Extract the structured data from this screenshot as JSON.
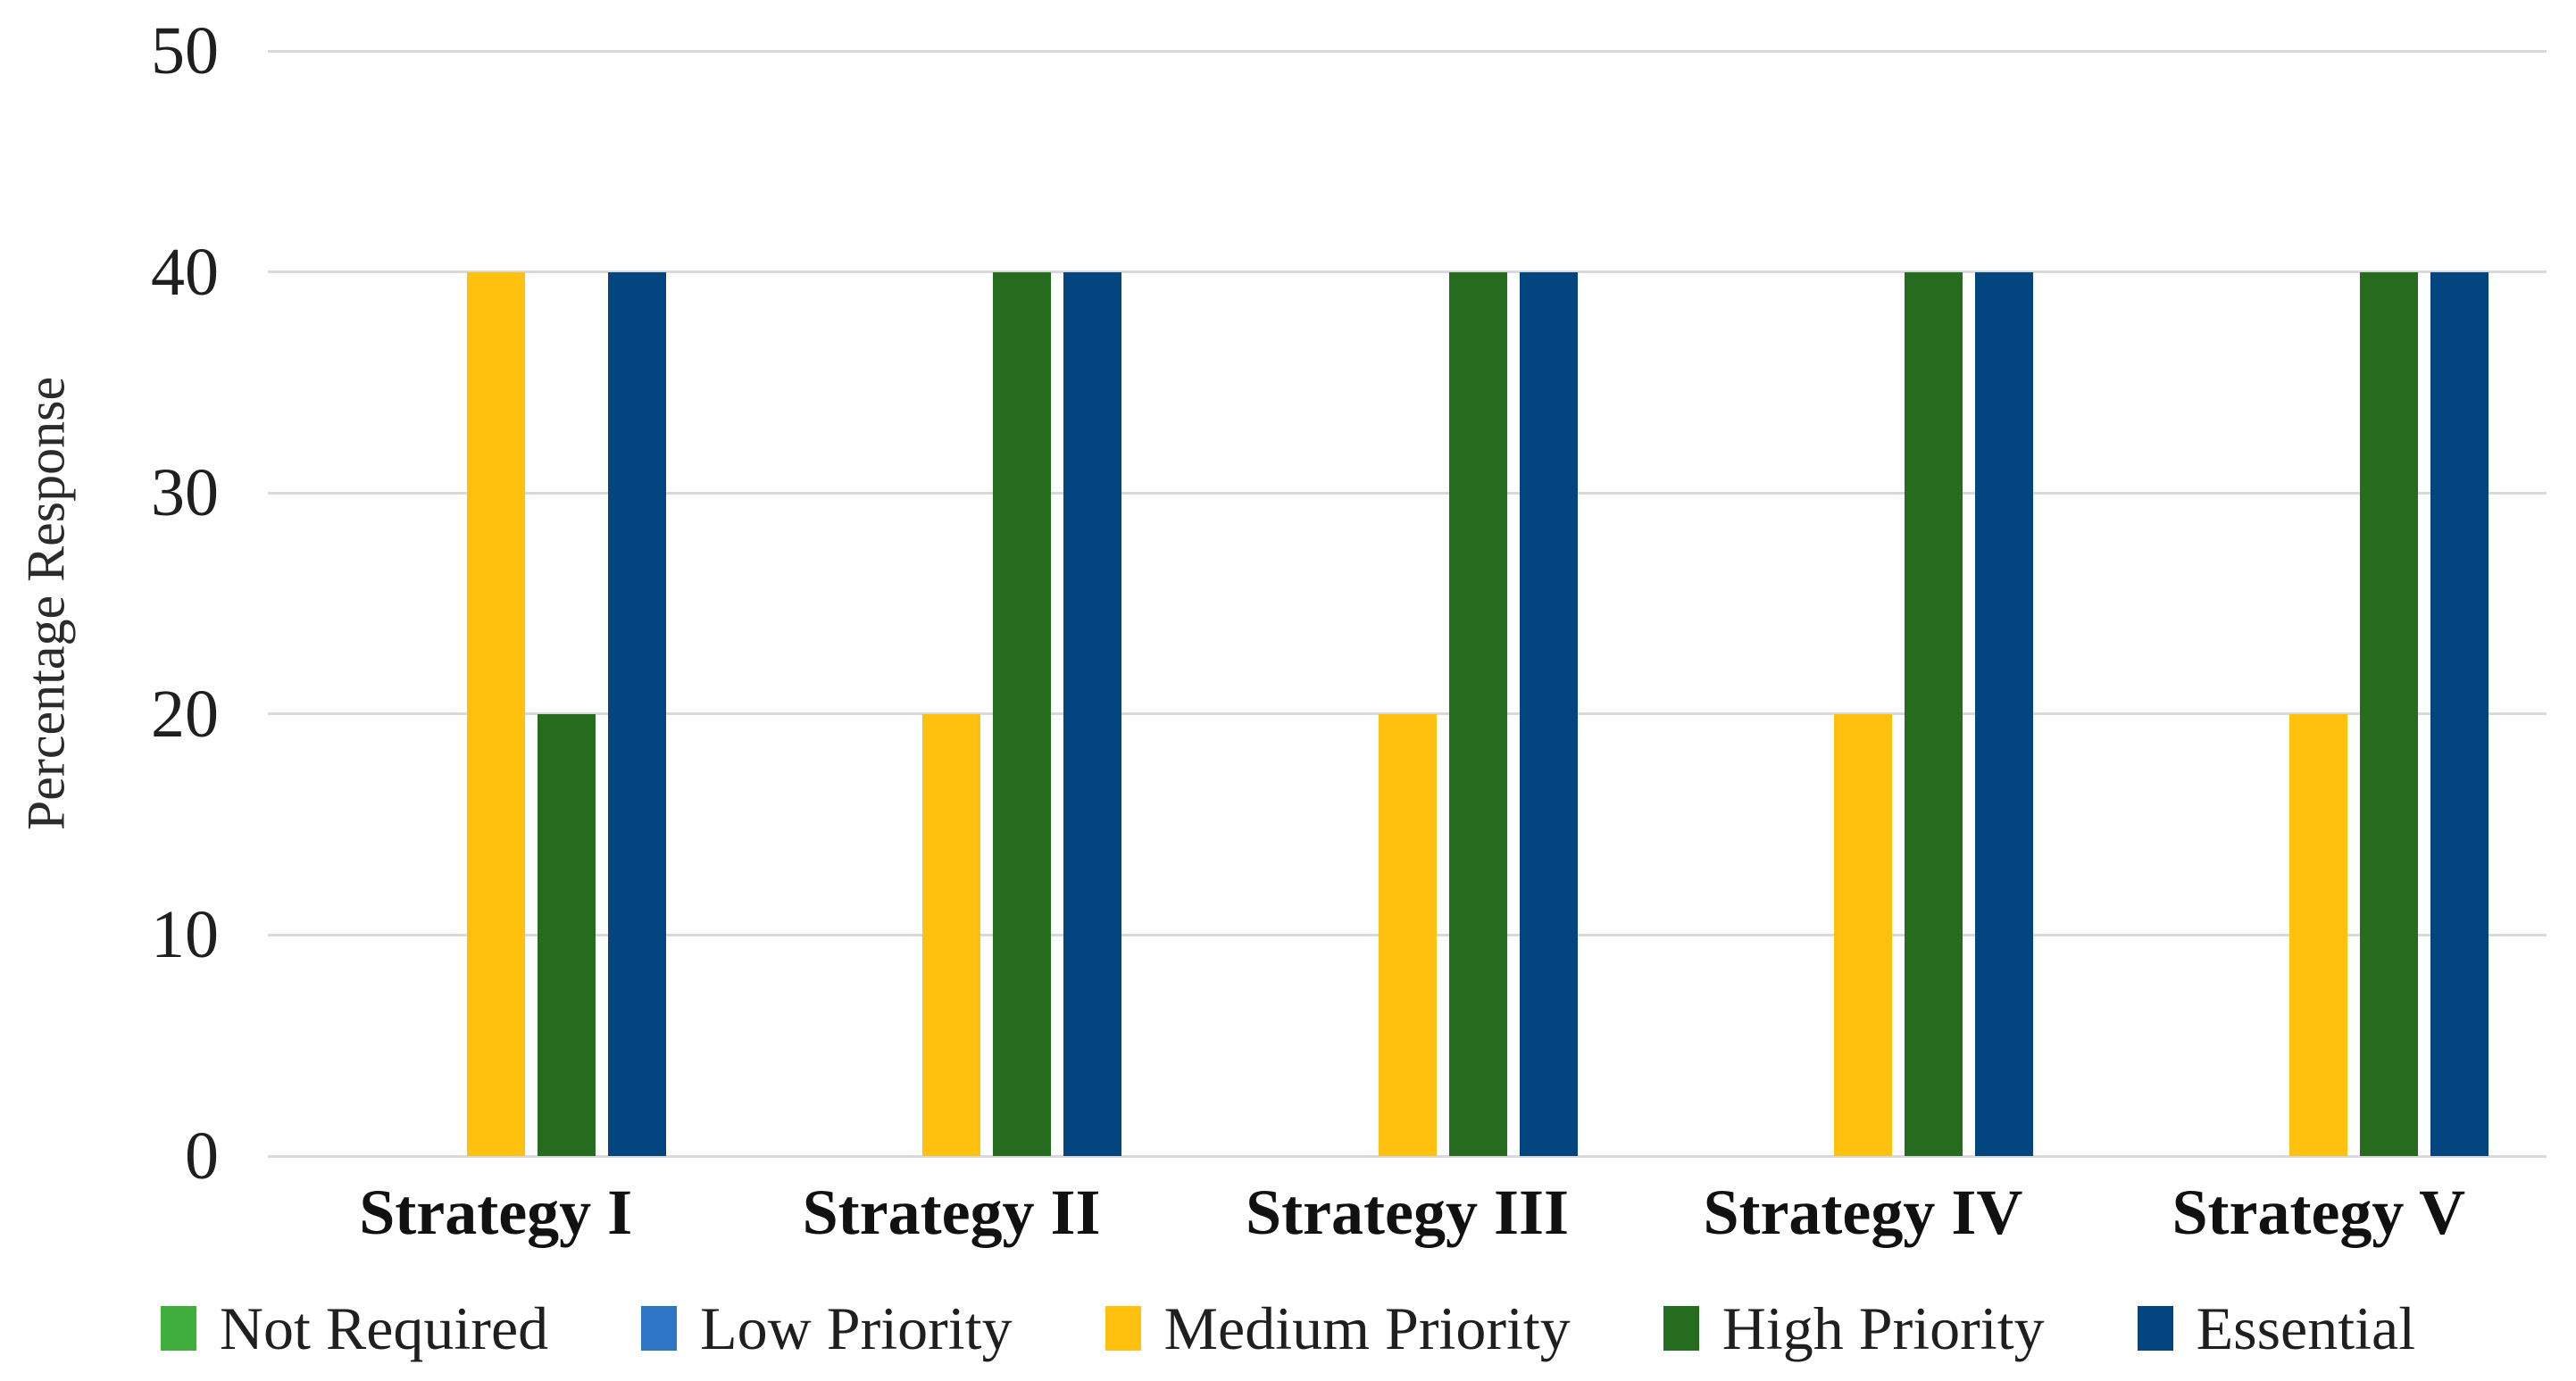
{
  "figure": {
    "background": "#ffffff",
    "text_color": "#262626",
    "gridline_color": "#D9D9D9"
  },
  "chart_data": {
    "type": "bar",
    "title": "",
    "xlabel": "",
    "ylabel": "Percentage Response",
    "ylim": [
      0,
      50
    ],
    "yticks": [
      0,
      10,
      20,
      30,
      40,
      50
    ],
    "grid": "horizontal gridlines only",
    "legend_position": "bottom",
    "categories": [
      "Strategy I",
      "Strategy II",
      "Strategy III",
      "Strategy IV",
      "Strategy V"
    ],
    "series": [
      {
        "name": "Not Required",
        "color": "#3FAE3C",
        "values": [
          0,
          0,
          0,
          0,
          0
        ]
      },
      {
        "name": "Low Priority",
        "color": "#2E75C6",
        "values": [
          0,
          0,
          0,
          0,
          0
        ]
      },
      {
        "name": "Medium Priority",
        "color": "#FFC10E",
        "values": [
          40,
          20,
          20,
          20,
          20
        ]
      },
      {
        "name": "High Priority",
        "color": "#266C1E",
        "values": [
          20,
          40,
          40,
          40,
          40
        ]
      },
      {
        "name": "Essential",
        "color": "#03457E",
        "values": [
          40,
          40,
          40,
          40,
          40
        ]
      }
    ]
  }
}
